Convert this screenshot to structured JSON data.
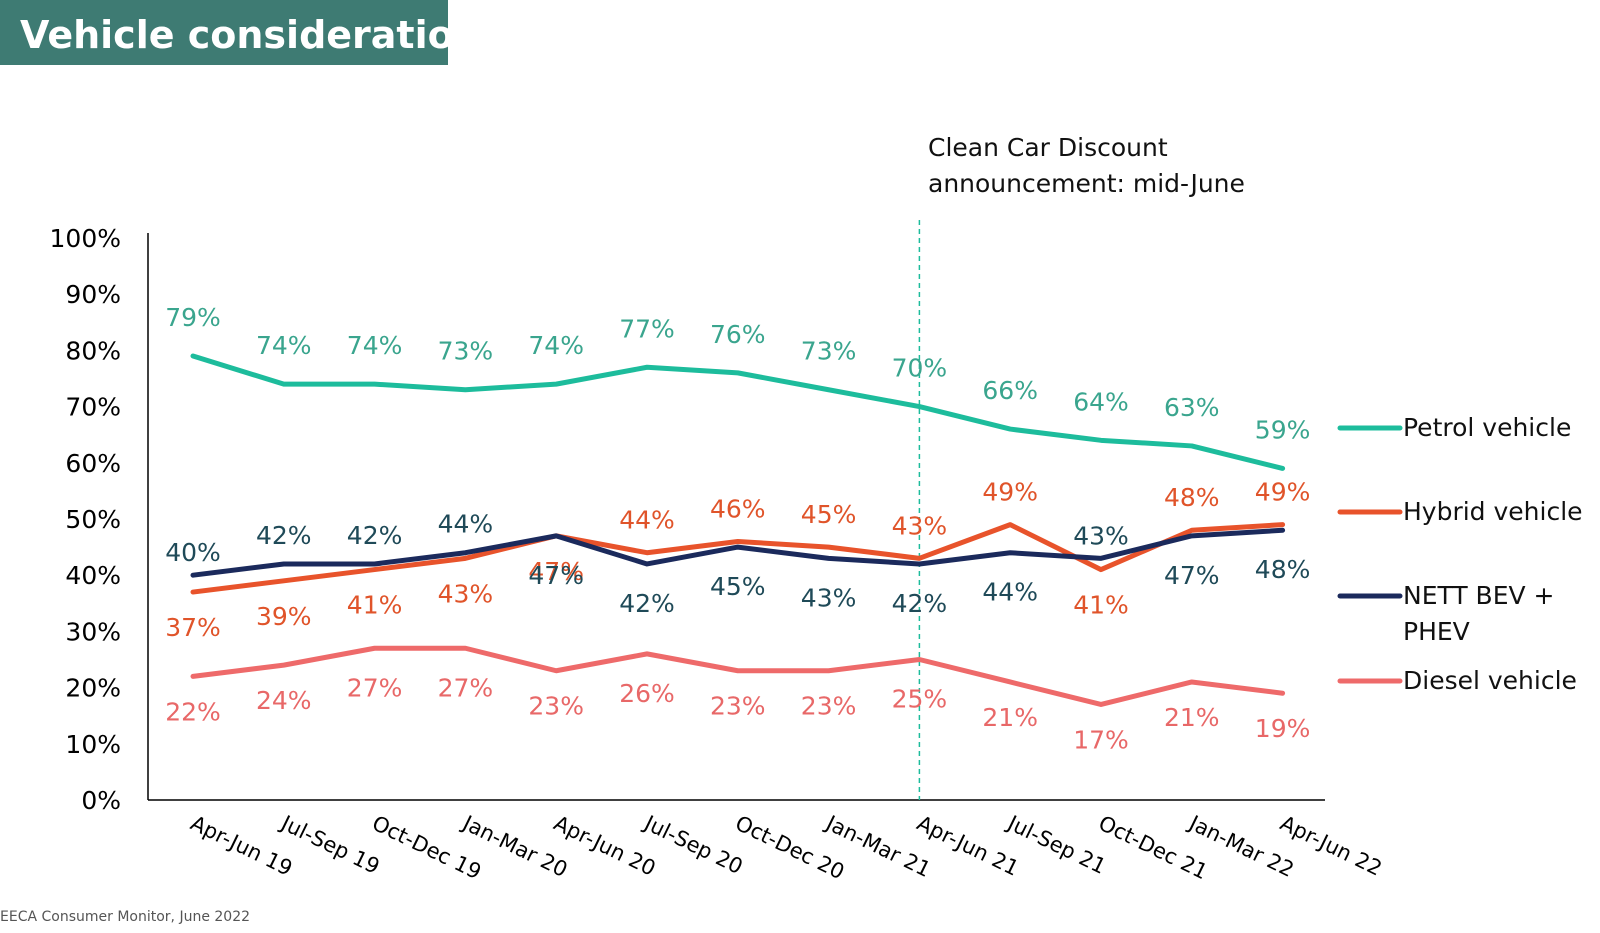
{
  "header": {
    "title": "Vehicle consideration"
  },
  "source": "EECA Consumer Monitor, June 2022",
  "annotation": {
    "line1": "Clean Car Discount",
    "line2": "announcement: mid-June"
  },
  "chart_data": {
    "type": "line",
    "title": "Vehicle consideration",
    "xlabel": "",
    "ylabel": "",
    "ylim": [
      0,
      100
    ],
    "yticks": [
      "0%",
      "10%",
      "20%",
      "30%",
      "40%",
      "50%",
      "60%",
      "70%",
      "80%",
      "90%",
      "100%"
    ],
    "categories": [
      "Apr-Jun 19",
      "Jul-Sep 19",
      "Oct-Dec 19",
      "Jan-Mar 20",
      "Apr-Jun 20",
      "Jul-Sep 20",
      "Oct-Dec 20",
      "Jan-Mar 21",
      "Apr-Jun 21",
      "Jul-Sep 21",
      "Oct-Dec 21",
      "Jan-Mar 22",
      "Apr-Jun 22"
    ],
    "marker_category": "Apr-Jun 21",
    "legend_position": "right",
    "grid": false,
    "series": [
      {
        "name": "Petrol vehicle",
        "color": "#1dbc9c",
        "label_color": "#3aa58e",
        "values": [
          79,
          74,
          74,
          73,
          74,
          77,
          76,
          73,
          70,
          66,
          64,
          63,
          59
        ]
      },
      {
        "name": "Hybrid vehicle",
        "color": "#e8532b",
        "label_color": "#e0542a",
        "values": [
          37,
          39,
          41,
          43,
          47,
          44,
          46,
          45,
          43,
          49,
          41,
          48,
          49
        ]
      },
      {
        "name": "NETT BEV + PHEV",
        "color": "#1b2a5c",
        "label_color": "#1f4a58",
        "values": [
          40,
          42,
          42,
          44,
          47,
          42,
          45,
          43,
          42,
          44,
          43,
          47,
          48
        ]
      },
      {
        "name": "Diesel vehicle",
        "color": "#ee6a6a",
        "label_color": "#e86868",
        "values": [
          22,
          24,
          27,
          27,
          23,
          26,
          23,
          23,
          25,
          21,
          17,
          21,
          19
        ]
      }
    ]
  }
}
